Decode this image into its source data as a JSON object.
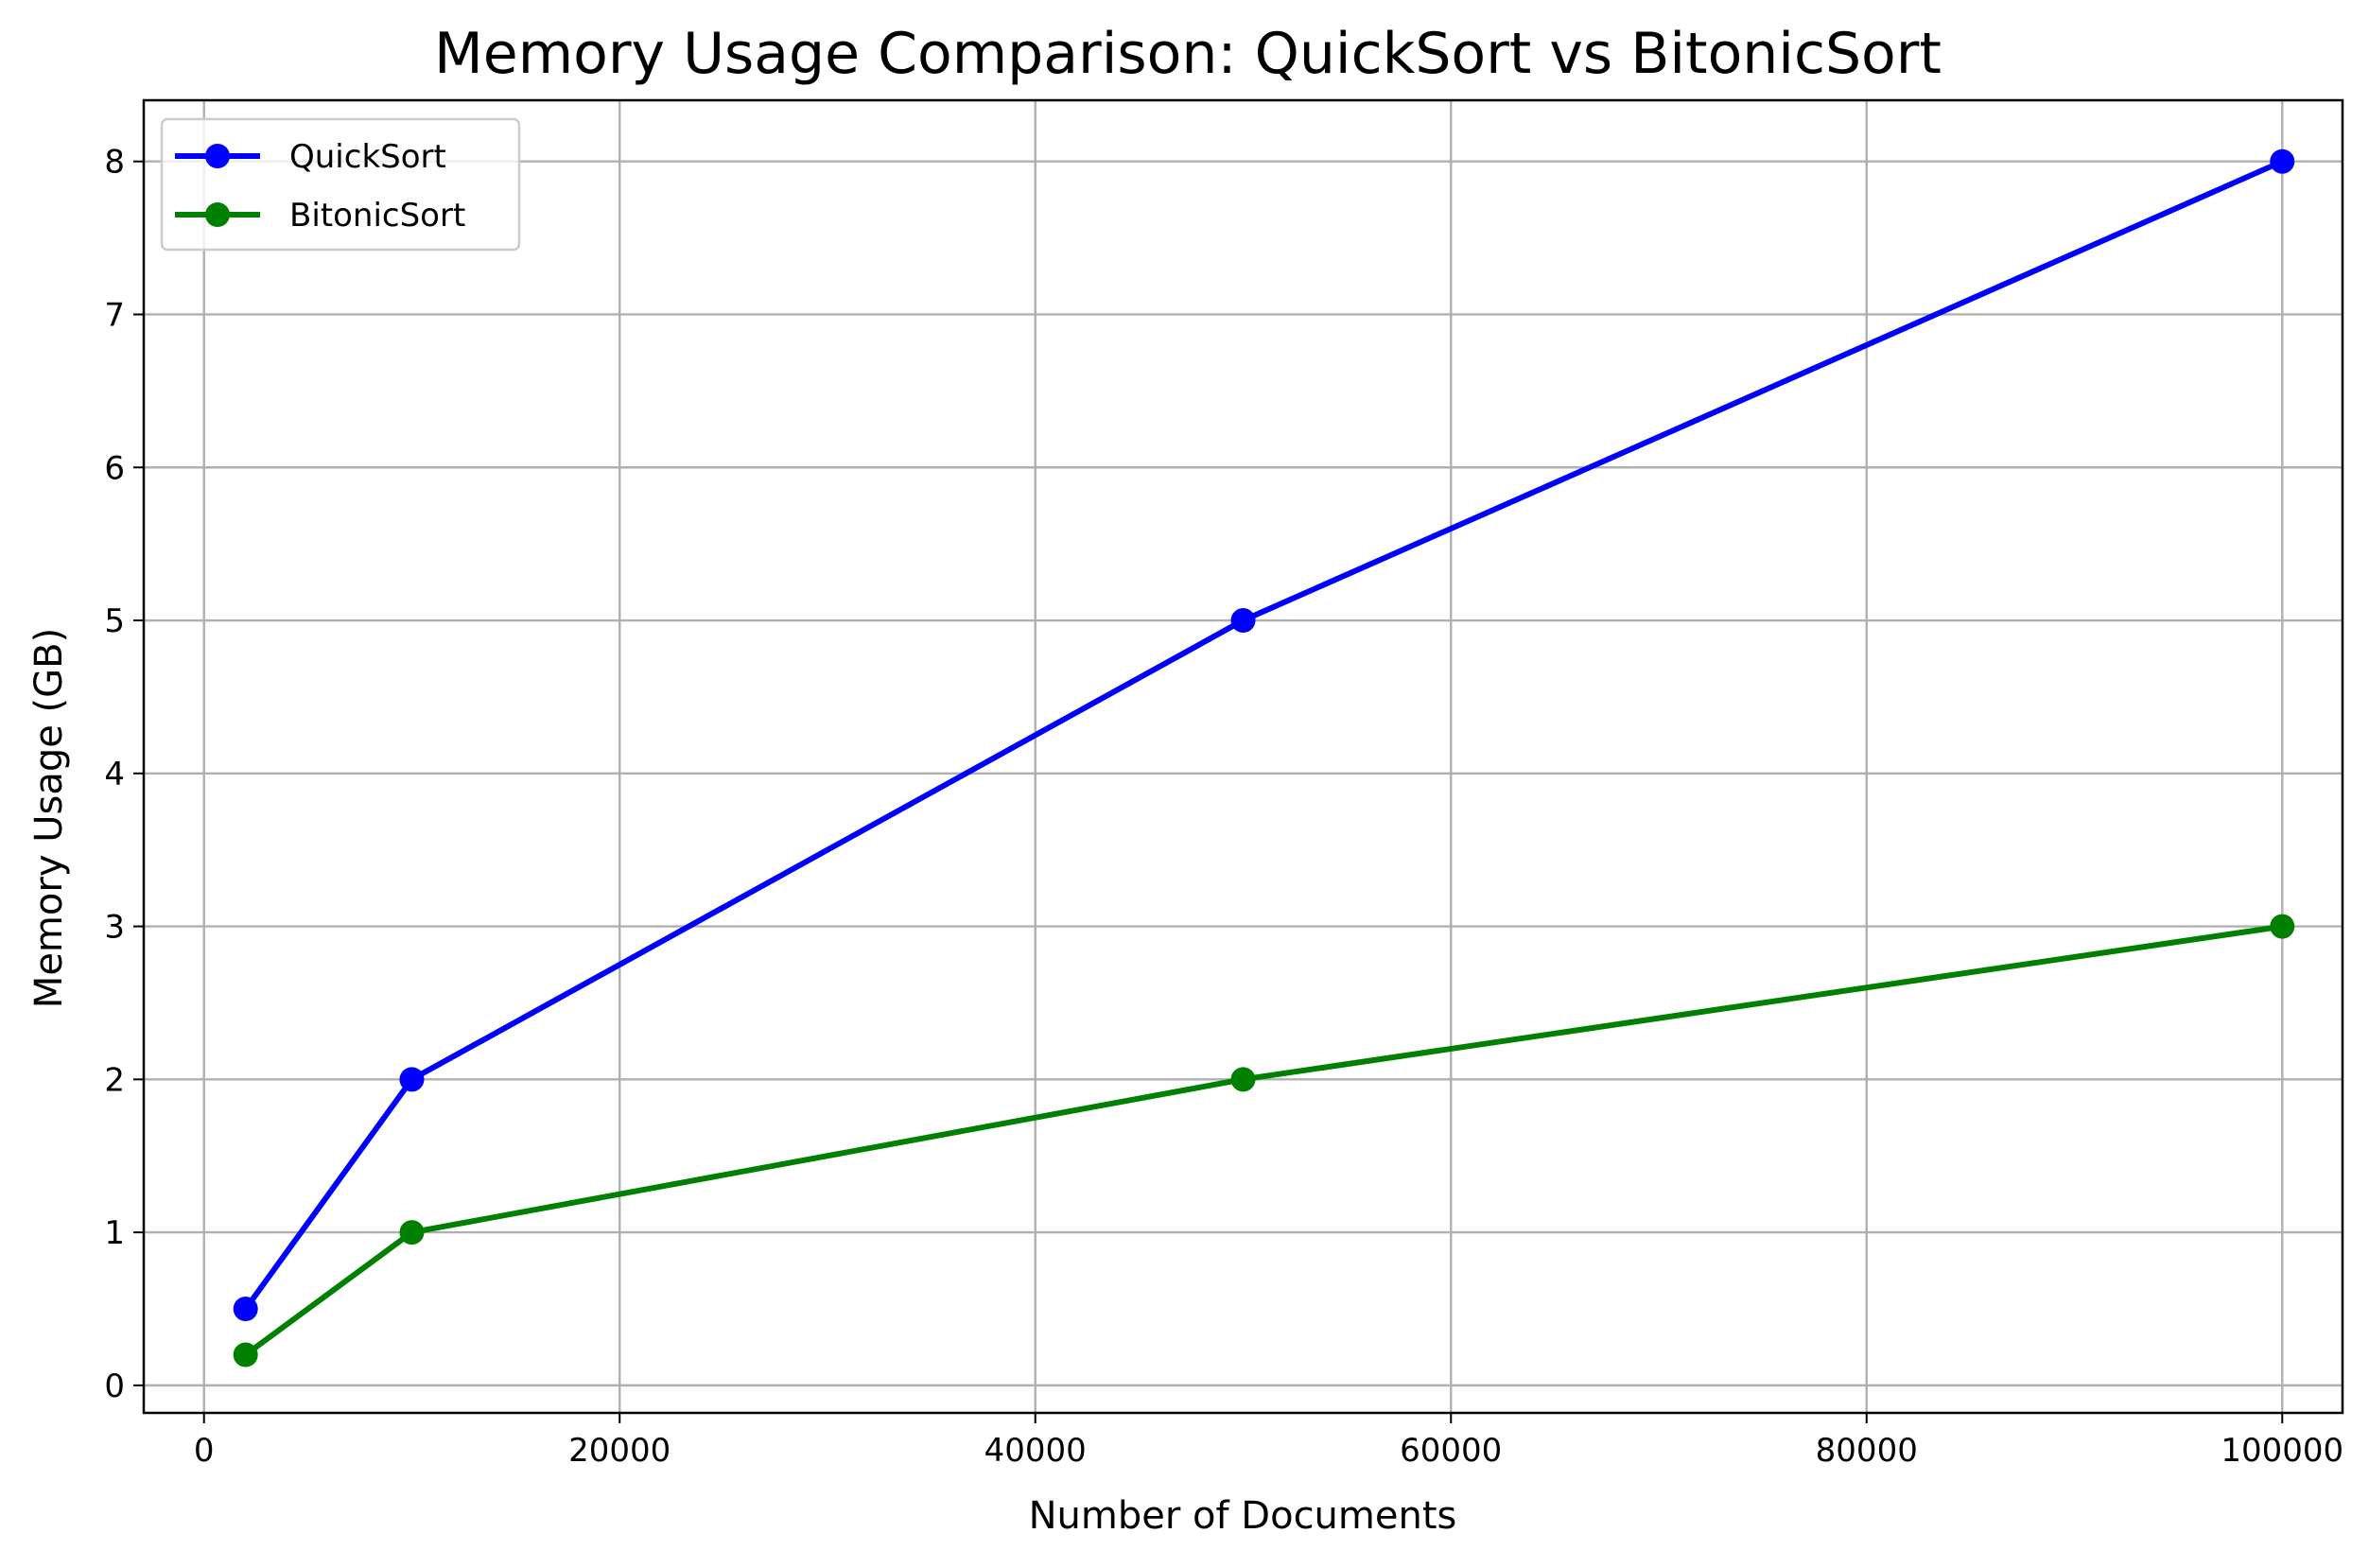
{
  "chart_data": {
    "type": "line",
    "title": "Memory Usage Comparison: QuickSort vs BitonicSort",
    "xlabel": "Number of Documents",
    "ylabel": "Memory Usage (GB)",
    "xlim": [
      -2900,
      102900
    ],
    "ylim": [
      -0.18,
      8.4
    ],
    "xticks": [
      0,
      20000,
      40000,
      60000,
      80000,
      100000
    ],
    "yticks": [
      0,
      1,
      2,
      3,
      4,
      5,
      6,
      7,
      8
    ],
    "xtick_labels": [
      "0",
      "20000",
      "40000",
      "60000",
      "80000",
      "100000"
    ],
    "ytick_labels": [
      "0",
      "1",
      "2",
      "3",
      "4",
      "5",
      "6",
      "7",
      "8"
    ],
    "grid": true,
    "legend_position": "upper-left",
    "x": [
      2000,
      10000,
      50000,
      100000
    ],
    "series": [
      {
        "name": "QuickSort",
        "color": "#0000ff",
        "marker": "circle",
        "values": [
          0.5,
          2,
          5,
          8
        ]
      },
      {
        "name": "BitonicSort",
        "color": "#008000",
        "marker": "circle",
        "values": [
          0.2,
          1,
          2,
          3
        ]
      }
    ]
  }
}
